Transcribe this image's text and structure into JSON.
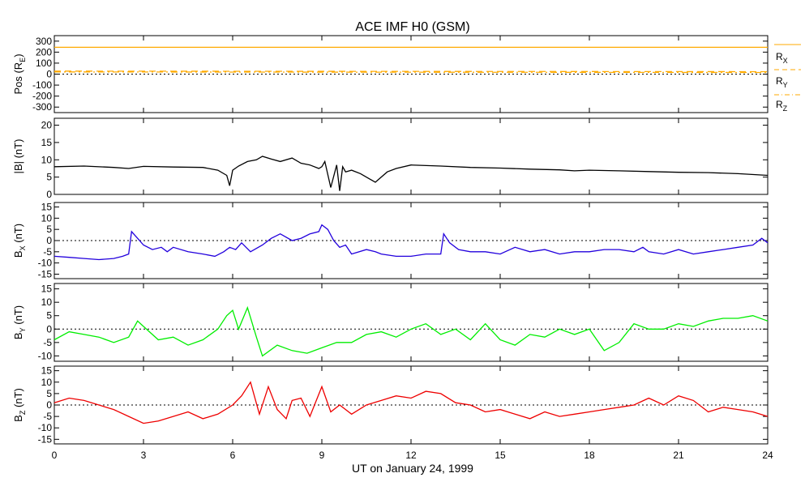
{
  "chart_data": {
    "type": "line",
    "title": "ACE IMF H0 (GSM)",
    "xlabel": "UT on January 24, 1999",
    "xlim": [
      0,
      24
    ],
    "x_ticks": [
      "0",
      "3",
      "6",
      "9",
      "12",
      "15",
      "18",
      "21",
      "24"
    ],
    "panels": [
      {
        "id": "pos",
        "ylabel": "Pos (RE)",
        "ylim": [
          -350,
          350
        ],
        "y_ticks": [
          "300",
          "200",
          "100",
          "0",
          "-100",
          "-200",
          "-300"
        ],
        "zero_line": true,
        "series": [
          {
            "name": "RX",
            "color": "#ffaa00",
            "dash": "solid",
            "x": [
              0,
              24
            ],
            "y": [
              244,
              244
            ]
          },
          {
            "name": "RY",
            "color": "#ffaa00",
            "dash": "dashed",
            "x": [
              0,
              24
            ],
            "y": [
              27,
              22
            ]
          },
          {
            "name": "RZ",
            "color": "#ffaa00",
            "dash": "dashdot",
            "x": [
              0,
              24
            ],
            "y": [
              20,
              15
            ]
          }
        ]
      },
      {
        "id": "btot",
        "ylabel": "|B| (nT)",
        "ylim": [
          0,
          22
        ],
        "y_ticks": [
          "20",
          "15",
          "10",
          "5",
          "0"
        ],
        "zero_line": false,
        "series": [
          {
            "name": "|B|",
            "color": "#000000",
            "x": [
              0,
              1,
              2,
              2.5,
              3,
              4,
              5,
              5.5,
              5.8,
              5.9,
              6,
              6.2,
              6.5,
              6.8,
              7,
              7.3,
              7.6,
              8,
              8.3,
              8.6,
              8.9,
              9,
              9.1,
              9.3,
              9.5,
              9.6,
              9.7,
              9.8,
              10,
              10.3,
              10.6,
              10.8,
              11,
              11.2,
              11.5,
              12,
              13,
              14,
              15,
              16,
              17,
              17.5,
              18,
              19,
              20,
              21,
              22,
              23,
              24
            ],
            "y": [
              8,
              8.2,
              7.8,
              7.5,
              8.1,
              7.9,
              7.8,
              7,
              5.5,
              2.5,
              7,
              8.2,
              9.5,
              10,
              11,
              10.2,
              9.5,
              10.5,
              9,
              8.5,
              7.5,
              8,
              9.5,
              2,
              8.5,
              1,
              8,
              6.5,
              7,
              6,
              4.5,
              3.5,
              5,
              6.5,
              7.5,
              8.5,
              8.2,
              7.8,
              7.6,
              7.3,
              7.1,
              6.8,
              7,
              6.8,
              6.6,
              6.4,
              6.3,
              6,
              5.5
            ]
          }
        ]
      },
      {
        "id": "bx",
        "ylabel": "BX (nT)",
        "ylim": [
          -17,
          17
        ],
        "y_ticks": [
          "15",
          "10",
          "5",
          "0",
          "-5",
          "-10",
          "-15"
        ],
        "zero_line": true,
        "series": [
          {
            "name": "BX",
            "color": "#2200dd",
            "x": [
              0,
              0.5,
              1,
              1.5,
              2,
              2.3,
              2.5,
              2.6,
              2.8,
              3,
              3.3,
              3.6,
              3.8,
              4,
              4.5,
              5,
              5.4,
              5.7,
              5.9,
              6.1,
              6.3,
              6.6,
              7,
              7.3,
              7.6,
              8,
              8.3,
              8.6,
              8.9,
              9,
              9.2,
              9.4,
              9.6,
              9.8,
              10,
              10.5,
              10.8,
              11,
              11.5,
              12,
              12.5,
              13,
              13.1,
              13.3,
              13.6,
              14,
              14.5,
              15,
              15.5,
              16,
              16.5,
              17,
              17.5,
              18,
              18.5,
              19,
              19.5,
              19.8,
              20,
              20.5,
              21,
              21.5,
              22,
              22.5,
              23,
              23.5,
              23.8,
              24
            ],
            "y": [
              -7,
              -7.5,
              -8,
              -8.5,
              -8,
              -7,
              -6,
              4,
              1,
              -2,
              -4,
              -3,
              -5,
              -3,
              -5,
              -6,
              -7,
              -5,
              -3,
              -4,
              -1,
              -5,
              -2,
              1,
              3,
              0,
              1,
              3,
              4,
              7,
              5,
              0,
              -3,
              -2,
              -6,
              -4,
              -5,
              -6,
              -7,
              -7,
              -6,
              -6,
              3,
              -1,
              -4,
              -5,
              -5,
              -6,
              -3,
              -5,
              -4,
              -6,
              -5,
              -5,
              -4,
              -4,
              -5,
              -3,
              -5,
              -6,
              -4,
              -6,
              -5,
              -4,
              -3,
              -2,
              1,
              -1
            ]
          }
        ]
      },
      {
        "id": "by",
        "ylabel": "BY (nT)",
        "ylim": [
          -12,
          17
        ],
        "y_ticks": [
          "15",
          "10",
          "5",
          "0",
          "-5",
          "-10"
        ],
        "zero_line": true,
        "series": [
          {
            "name": "BY",
            "color": "#00ee00",
            "x": [
              0,
              0.5,
              1,
              1.5,
              2,
              2.5,
              2.8,
              3,
              3.5,
              4,
              4.5,
              5,
              5.5,
              5.8,
              6,
              6.2,
              6.5,
              6.8,
              7,
              7.5,
              8,
              8.5,
              9,
              9.5,
              10,
              10.5,
              11,
              11.5,
              12,
              12.5,
              13,
              13.5,
              14,
              14.5,
              15,
              15.5,
              16,
              16.5,
              17,
              17.5,
              18,
              18.5,
              19,
              19.5,
              20,
              20.5,
              21,
              21.5,
              22,
              22.5,
              23,
              23.5,
              24
            ],
            "y": [
              -4,
              -1,
              -2,
              -3,
              -5,
              -3,
              3,
              1,
              -4,
              -3,
              -6,
              -4,
              0,
              5,
              7,
              0,
              8,
              -3,
              -10,
              -6,
              -8,
              -9,
              -7,
              -5,
              -5,
              -2,
              -1,
              -3,
              0,
              2,
              -2,
              0,
              -4,
              2,
              -4,
              -6,
              -2,
              -3,
              0,
              -2,
              0,
              -8,
              -5,
              2,
              0,
              0,
              2,
              1,
              3,
              4,
              4,
              5,
              3
            ]
          }
        ]
      },
      {
        "id": "bz",
        "ylabel": "BZ (nT)",
        "ylim": [
          -17,
          17
        ],
        "y_ticks": [
          "15",
          "10",
          "5",
          "0",
          "-5",
          "-10",
          "-15"
        ],
        "zero_line": true,
        "series": [
          {
            "name": "BZ",
            "color": "#ee0000",
            "x": [
              0,
              0.5,
              1,
              1.5,
              2,
              2.5,
              3,
              3.5,
              4,
              4.5,
              5,
              5.5,
              6,
              6.3,
              6.6,
              6.9,
              7.2,
              7.5,
              7.8,
              8,
              8.3,
              8.6,
              9,
              9.3,
              9.6,
              10,
              10.5,
              11,
              11.5,
              12,
              12.5,
              13,
              13.5,
              14,
              14.5,
              15,
              15.5,
              16,
              16.5,
              17,
              17.5,
              18,
              18.5,
              19,
              19.5,
              20,
              20.5,
              21,
              21.5,
              22,
              22.5,
              23,
              23.5,
              24
            ],
            "y": [
              1,
              3,
              2,
              0,
              -2,
              -5,
              -8,
              -7,
              -5,
              -3,
              -6,
              -4,
              0,
              4,
              10,
              -4,
              8,
              -2,
              -6,
              2,
              3,
              -5,
              8,
              -3,
              0,
              -4,
              0,
              2,
              4,
              3,
              6,
              5,
              1,
              0,
              -3,
              -2,
              -4,
              -6,
              -3,
              -5,
              -4,
              -3,
              -2,
              -1,
              0,
              3,
              0,
              4,
              2,
              -3,
              -1,
              -2,
              -3,
              -5
            ]
          }
        ]
      }
    ]
  },
  "legend": {
    "rx": {
      "main": "R",
      "sub": "X"
    },
    "ry": {
      "main": "R",
      "sub": "Y"
    },
    "rz": {
      "main": "R",
      "sub": "Z"
    }
  },
  "axis_text": {
    "pos": {
      "main": "Pos (R",
      "sub": "E",
      "end": ")"
    },
    "btot": {
      "main": "|B| (nT)"
    },
    "bx": {
      "main": "B",
      "sub": "X",
      "end": " (nT)"
    },
    "by": {
      "main": "B",
      "sub": "Y",
      "end": " (nT)"
    },
    "bz": {
      "main": "B",
      "sub": "Z",
      "end": " (nT)"
    }
  }
}
